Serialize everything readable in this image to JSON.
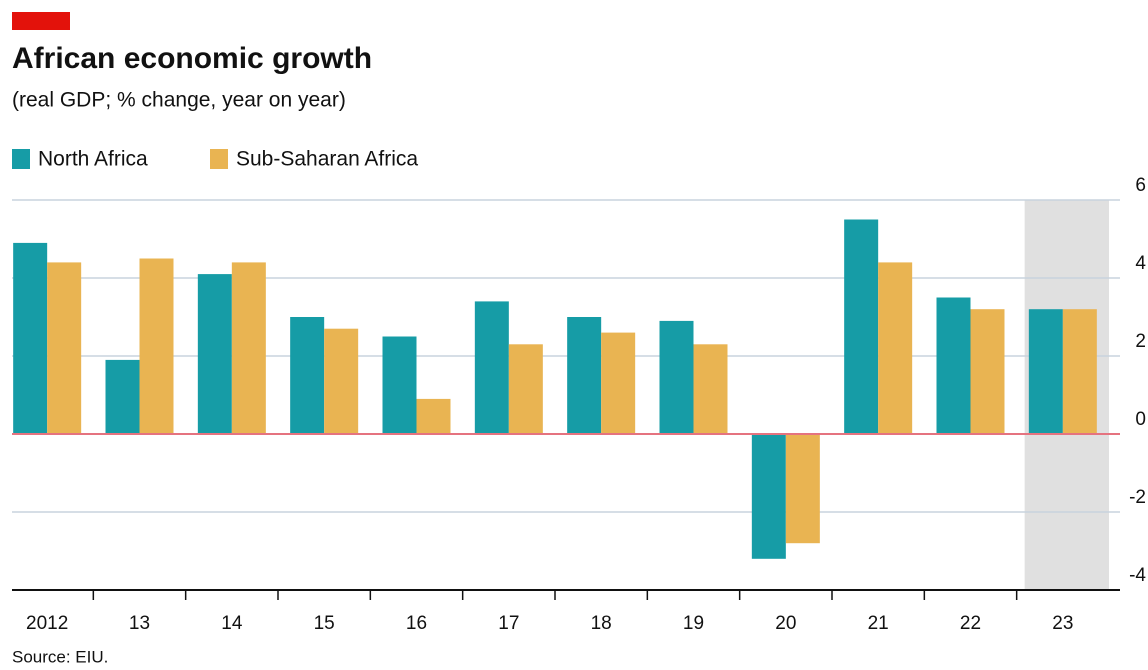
{
  "chart_data": {
    "type": "bar",
    "title": "African economic growth",
    "subtitle": "(real GDP; % change, year on year)",
    "source": "Source: EIU.",
    "categories": [
      "2012",
      "13",
      "14",
      "15",
      "16",
      "17",
      "18",
      "19",
      "20",
      "21",
      "22",
      "23"
    ],
    "series": [
      {
        "name": "North Africa",
        "color": "#169ca6",
        "values": [
          4.9,
          1.9,
          4.1,
          3.0,
          2.5,
          3.4,
          3.0,
          2.9,
          -3.2,
          5.5,
          3.5,
          3.2
        ]
      },
      {
        "name": "Sub-Saharan Africa",
        "color": "#e9b452",
        "values": [
          4.4,
          4.5,
          4.4,
          2.7,
          0.9,
          2.3,
          2.6,
          2.3,
          -2.8,
          4.4,
          3.2,
          3.2
        ]
      }
    ],
    "ylim": [
      -4,
      6
    ],
    "yticks": [
      -4,
      -2,
      0,
      2,
      4,
      6
    ],
    "grid": true
  }
}
